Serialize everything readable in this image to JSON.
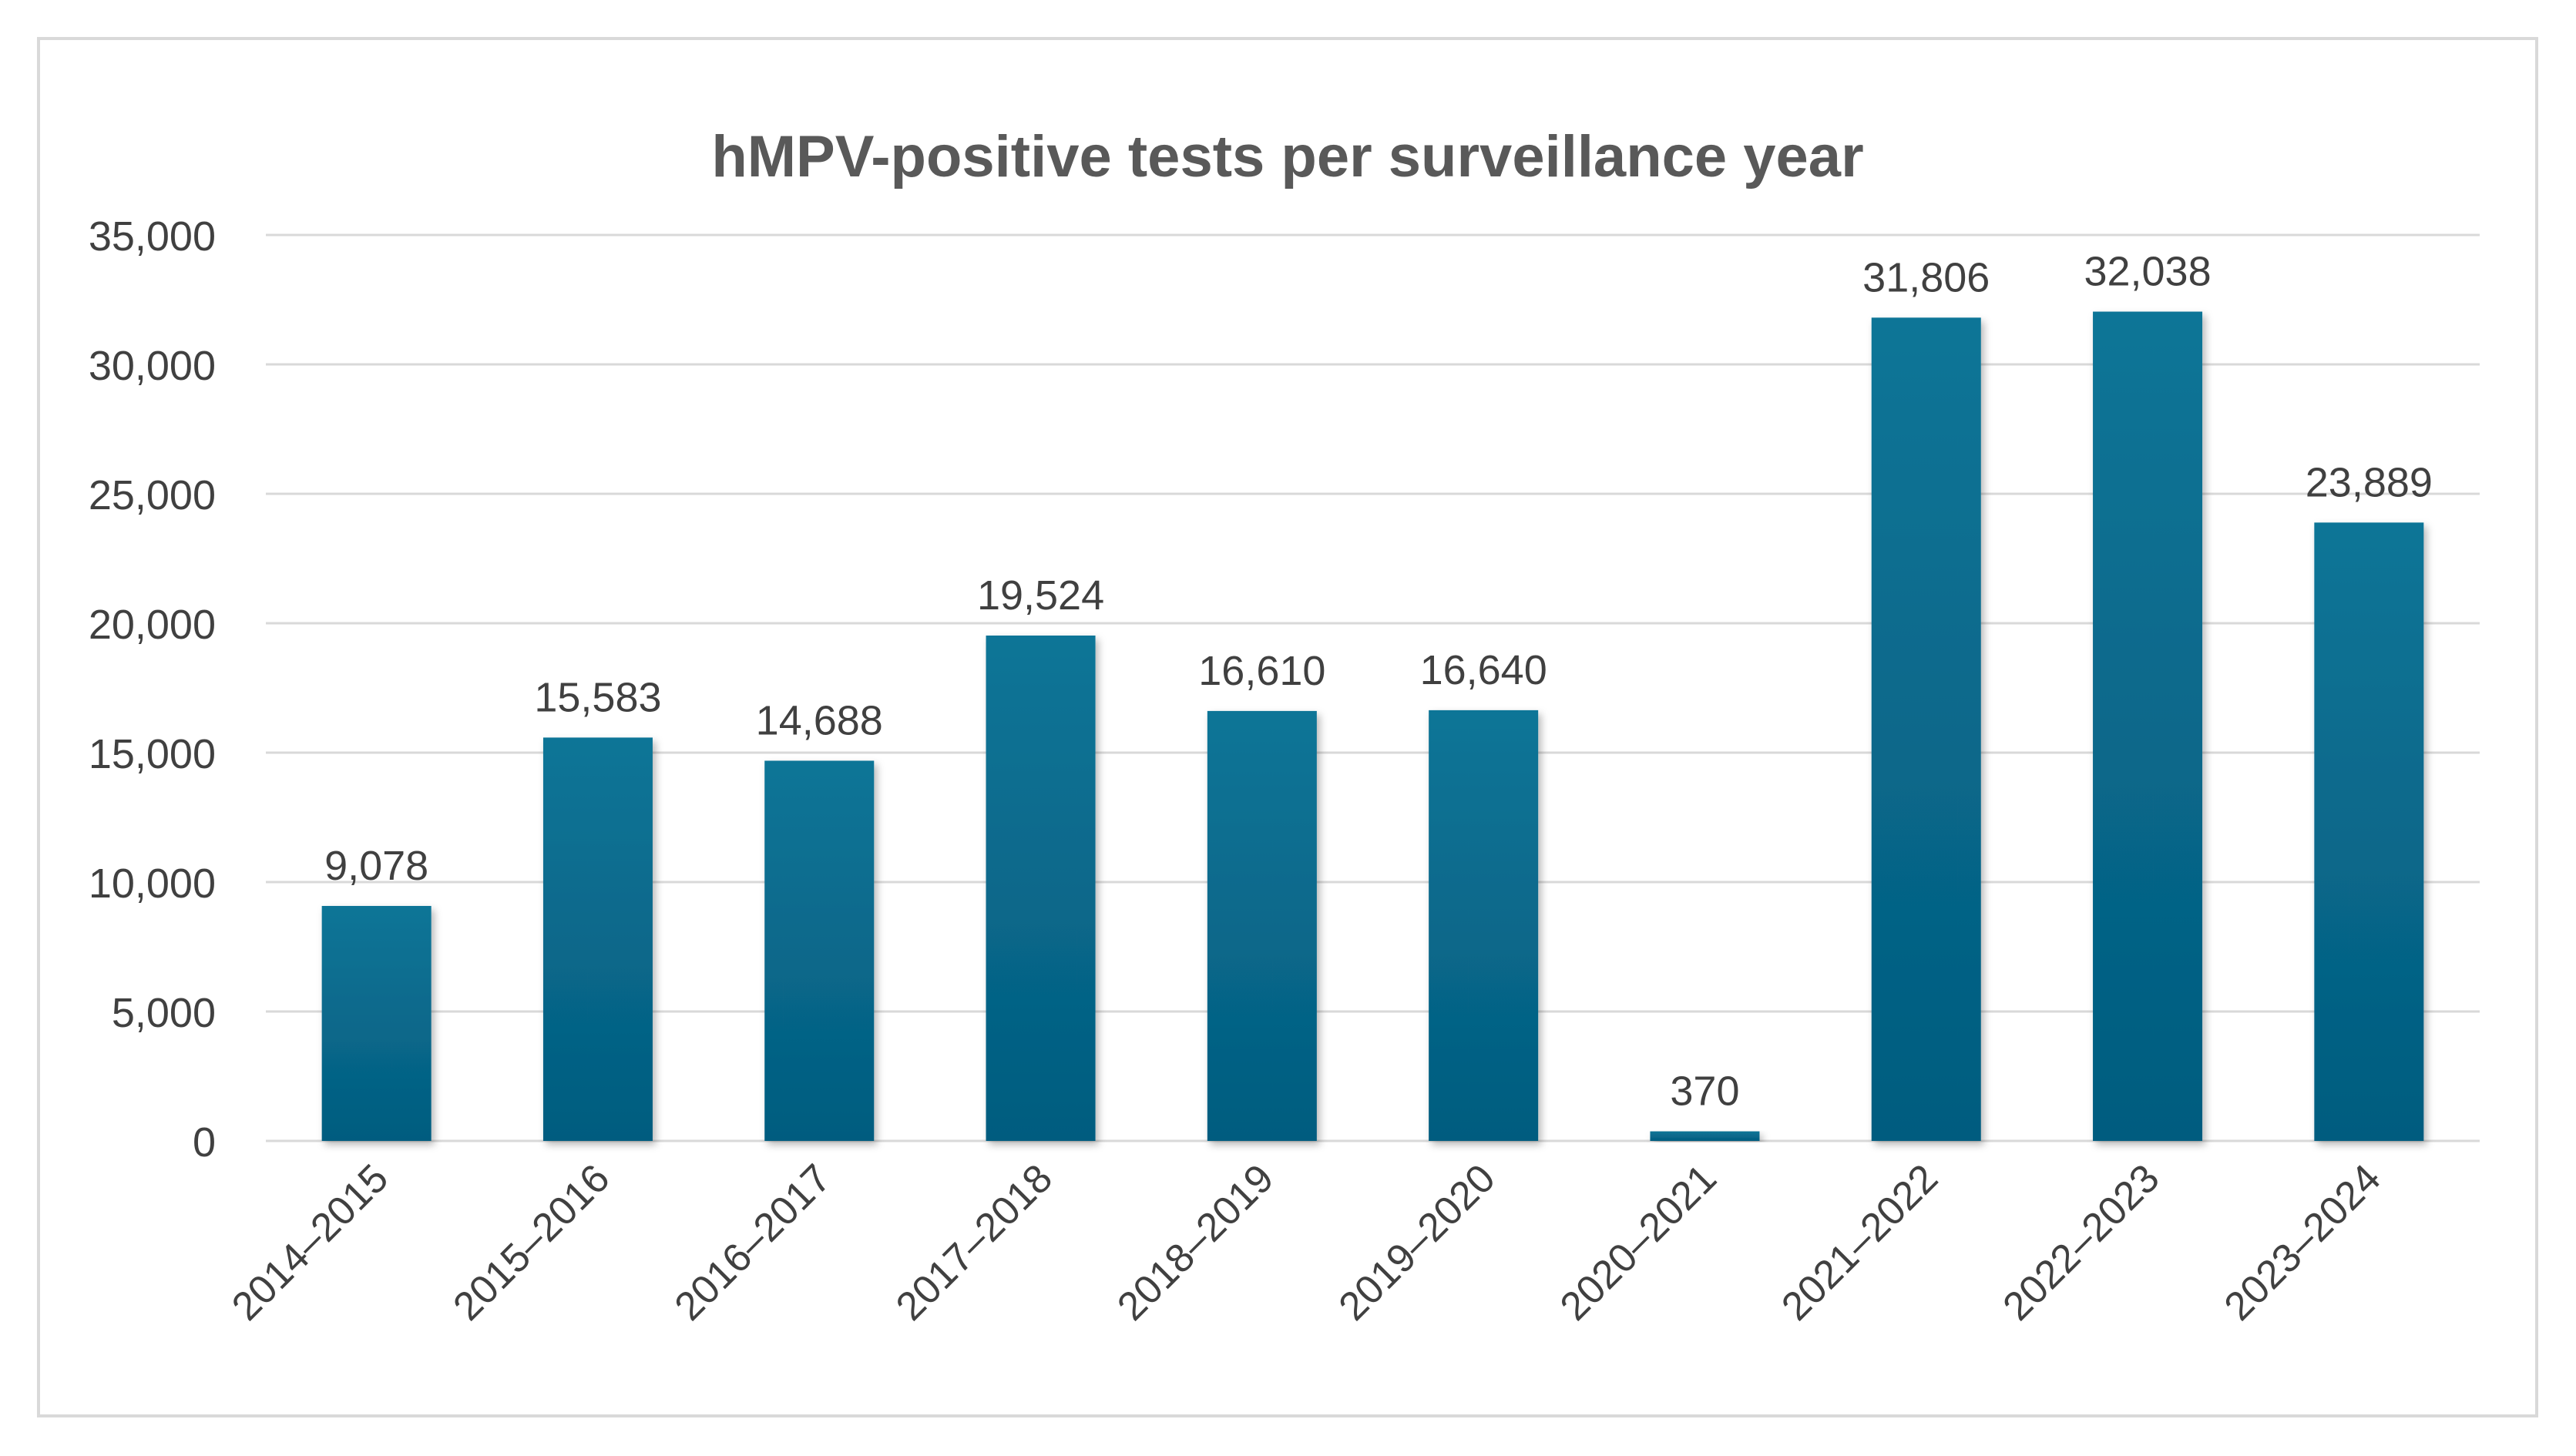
{
  "chart_data": {
    "type": "bar",
    "title": "hMPV-positive tests per surveillance year",
    "xlabel": "",
    "ylabel": "",
    "categories": [
      "2014–2015",
      "2015–2016",
      "2016–2017",
      "2017–2018",
      "2018–2019",
      "2019–2020",
      "2020–2021",
      "2021–2022",
      "2022–2023",
      "2023–2024"
    ],
    "values": [
      9078,
      15583,
      14688,
      19524,
      16610,
      16640,
      370,
      31806,
      32038,
      23889
    ],
    "data_labels": [
      "9,078",
      "15,583",
      "14,688",
      "19,524",
      "16,610",
      "16,640",
      "370",
      "31,806",
      "32,038",
      "23,889"
    ],
    "ylim": [
      0,
      35000
    ],
    "yticks": [
      0,
      5000,
      10000,
      15000,
      20000,
      25000,
      30000,
      35000
    ],
    "ytick_labels": [
      "0",
      "5,000",
      "10,000",
      "15,000",
      "20,000",
      "25,000",
      "30,000",
      "35,000"
    ],
    "grid": true,
    "legend": "none",
    "colors": {
      "bar_top": "#0b7597",
      "bar_bottom": "#045c7f",
      "grid": "#d9d9d9",
      "text": "#404040",
      "title": "#595959"
    }
  }
}
